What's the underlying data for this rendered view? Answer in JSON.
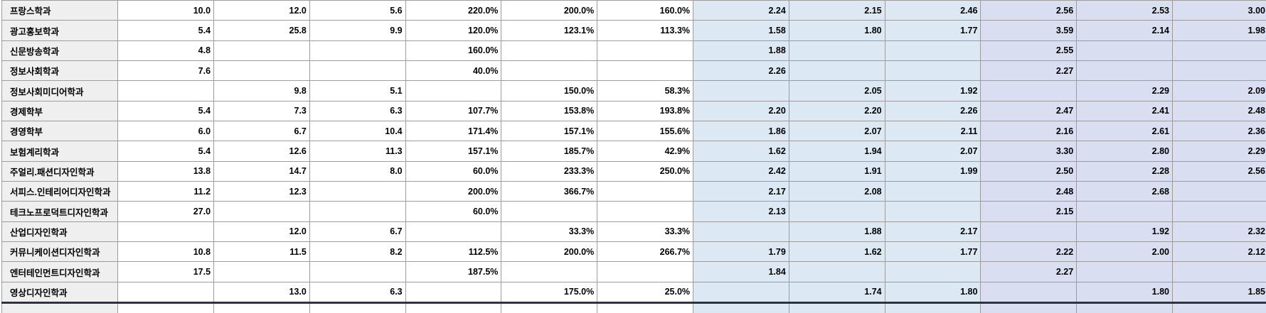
{
  "colors": {
    "name_column_bg": "#efefef",
    "blue_section_bg": "#dce8f4",
    "lavender_section_bg": "#d9def0",
    "grid_border": "#9c9c9c",
    "thick_bottom_border": "#2b3442"
  },
  "table": {
    "column_groups": {
      "plain_value_columns": 3,
      "percent_columns": 3,
      "blue_columns": 3,
      "lavender_columns": 3
    },
    "rows": [
      {
        "name": "프랑스학과",
        "values": [
          "10.0",
          "12.0",
          "5.6",
          "220.0%",
          "200.0%",
          "160.0%",
          "2.24",
          "2.15",
          "2.46",
          "2.56",
          "2.53",
          "3.00"
        ]
      },
      {
        "name": "광고홍보학과",
        "values": [
          "5.4",
          "25.8",
          "9.9",
          "120.0%",
          "123.1%",
          "113.3%",
          "1.58",
          "1.80",
          "1.77",
          "3.59",
          "2.14",
          "1.98"
        ]
      },
      {
        "name": "신문방송학과",
        "values": [
          "4.8",
          "",
          "",
          "160.0%",
          "",
          "",
          "1.88",
          "",
          "",
          "2.55",
          "",
          ""
        ]
      },
      {
        "name": "정보사회학과",
        "values": [
          "7.6",
          "",
          "",
          "40.0%",
          "",
          "",
          "2.26",
          "",
          "",
          "2.27",
          "",
          ""
        ]
      },
      {
        "name": "정보사회미디어학과",
        "values": [
          "",
          "9.8",
          "5.1",
          "",
          "150.0%",
          "58.3%",
          "",
          "2.05",
          "1.92",
          "",
          "2.29",
          "2.09"
        ]
      },
      {
        "name": "경제학부",
        "values": [
          "5.4",
          "7.3",
          "6.3",
          "107.7%",
          "153.8%",
          "193.8%",
          "2.20",
          "2.20",
          "2.26",
          "2.47",
          "2.41",
          "2.48"
        ]
      },
      {
        "name": "경영학부",
        "values": [
          "6.0",
          "6.7",
          "10.4",
          "171.4%",
          "157.1%",
          "155.6%",
          "1.86",
          "2.07",
          "2.11",
          "2.16",
          "2.61",
          "2.36"
        ]
      },
      {
        "name": "보험계리학과",
        "values": [
          "5.4",
          "12.6",
          "11.3",
          "157.1%",
          "185.7%",
          "42.9%",
          "1.62",
          "1.94",
          "2.07",
          "3.30",
          "2.80",
          "2.29"
        ]
      },
      {
        "name": "주얼리.패션디자인학과",
        "values": [
          "13.8",
          "14.7",
          "8.0",
          "60.0%",
          "233.3%",
          "250.0%",
          "2.42",
          "1.91",
          "1.99",
          "2.50",
          "2.28",
          "2.56"
        ]
      },
      {
        "name": "서피스.인테리어디자인학과",
        "values": [
          "11.2",
          "12.3",
          "",
          "200.0%",
          "366.7%",
          "",
          "2.17",
          "2.08",
          "",
          "2.48",
          "2.68",
          ""
        ]
      },
      {
        "name": "테크노프로덕트디자인학과",
        "values": [
          "27.0",
          "",
          "",
          "60.0%",
          "",
          "",
          "2.13",
          "",
          "",
          "2.15",
          "",
          ""
        ]
      },
      {
        "name": "산업디자인학과",
        "values": [
          "",
          "12.0",
          "6.7",
          "",
          "33.3%",
          "33.3%",
          "",
          "1.88",
          "2.17",
          "",
          "1.92",
          "2.32"
        ]
      },
      {
        "name": "커뮤니케이션디자인학과",
        "values": [
          "10.8",
          "11.5",
          "8.2",
          "112.5%",
          "200.0%",
          "266.7%",
          "1.79",
          "1.62",
          "1.77",
          "2.22",
          "2.00",
          "2.12"
        ]
      },
      {
        "name": "엔터테인먼트디자인학과",
        "values": [
          "17.5",
          "",
          "",
          "187.5%",
          "",
          "",
          "1.84",
          "",
          "",
          "2.27",
          "",
          ""
        ]
      },
      {
        "name": "영상디자인학과",
        "values": [
          "",
          "13.0",
          "6.3",
          "",
          "175.0%",
          "25.0%",
          "",
          "1.74",
          "1.80",
          "",
          "1.80",
          "1.85"
        ]
      }
    ],
    "partial_row_visible": true
  }
}
